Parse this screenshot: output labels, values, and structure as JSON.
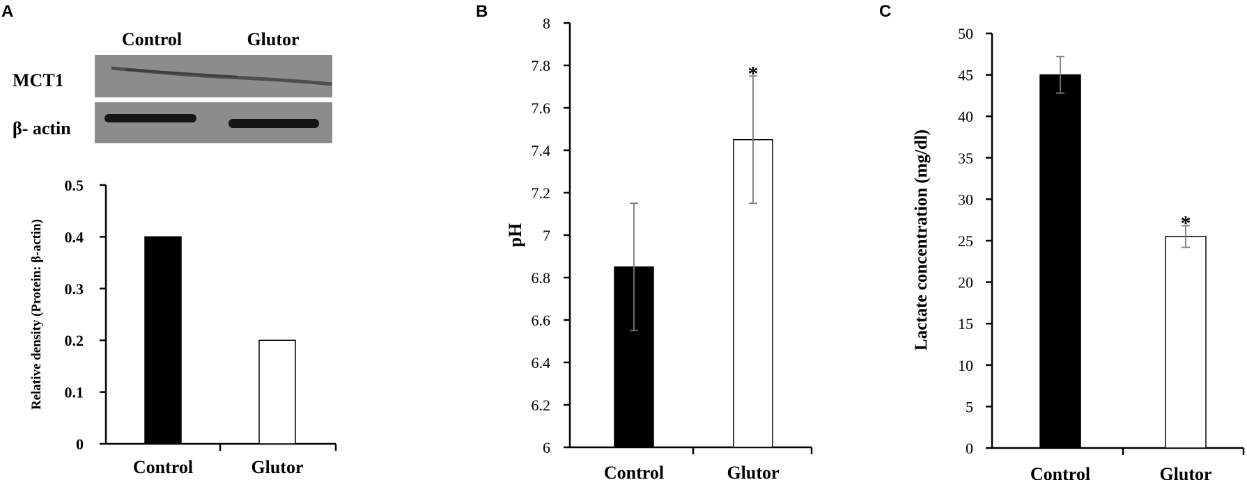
{
  "figure": {
    "panel_a": {
      "letter": "A",
      "blot": {
        "lanes": [
          "Control",
          "Glutor"
        ],
        "rows": [
          "MCT1",
          "β- actin"
        ]
      }
    },
    "panel_b": {
      "letter": "B"
    },
    "panel_c": {
      "letter": "C"
    },
    "colors": {
      "control": "#000000",
      "glutor": "#ffffff",
      "error_bar": "#7a7a7a"
    },
    "significance_marker": "*"
  },
  "chart_data": [
    {
      "id": "A",
      "type": "bar",
      "categories": [
        "Control",
        "Glutor"
      ],
      "values": [
        0.4,
        0.2
      ],
      "ylabel": "Relative density (Protein: β-actin)",
      "ylim": [
        0,
        0.5
      ],
      "yticks": [
        0,
        0.1,
        0.2,
        0.3,
        0.4,
        0.5
      ],
      "ytick_labels": [
        "0",
        "0.1",
        "0.2",
        "0.3",
        "0.4",
        "0.5"
      ],
      "grid": false,
      "legend": "none"
    },
    {
      "id": "B",
      "type": "bar",
      "categories": [
        "Control",
        "Glutor"
      ],
      "values": [
        6.85,
        7.45
      ],
      "errors": [
        0.3,
        0.3
      ],
      "significant": [
        false,
        true
      ],
      "ylabel": "pH",
      "ylim": [
        6,
        8
      ],
      "yticks": [
        6,
        6.2,
        6.4,
        6.6,
        6.8,
        7,
        7.2,
        7.4,
        7.6,
        7.8,
        8
      ],
      "ytick_labels": [
        "6",
        "6.2",
        "6.4",
        "6.6",
        "6.8",
        "7",
        "7.2",
        "7.4",
        "7.6",
        "7.8",
        "8"
      ],
      "grid": false,
      "legend": "none"
    },
    {
      "id": "C",
      "type": "bar",
      "categories": [
        "Control",
        "Glutor"
      ],
      "values": [
        45,
        25.5
      ],
      "errors": [
        2.2,
        1.3
      ],
      "significant": [
        false,
        true
      ],
      "ylabel": "Lactate concentration (mg/dl)",
      "ylim": [
        0,
        50
      ],
      "yticks": [
        0,
        5,
        10,
        15,
        20,
        25,
        30,
        35,
        40,
        45,
        50
      ],
      "ytick_labels": [
        "0",
        "5",
        "10",
        "15",
        "20",
        "25",
        "30",
        "35",
        "40",
        "45",
        "50"
      ],
      "grid": false,
      "legend": "none"
    }
  ]
}
